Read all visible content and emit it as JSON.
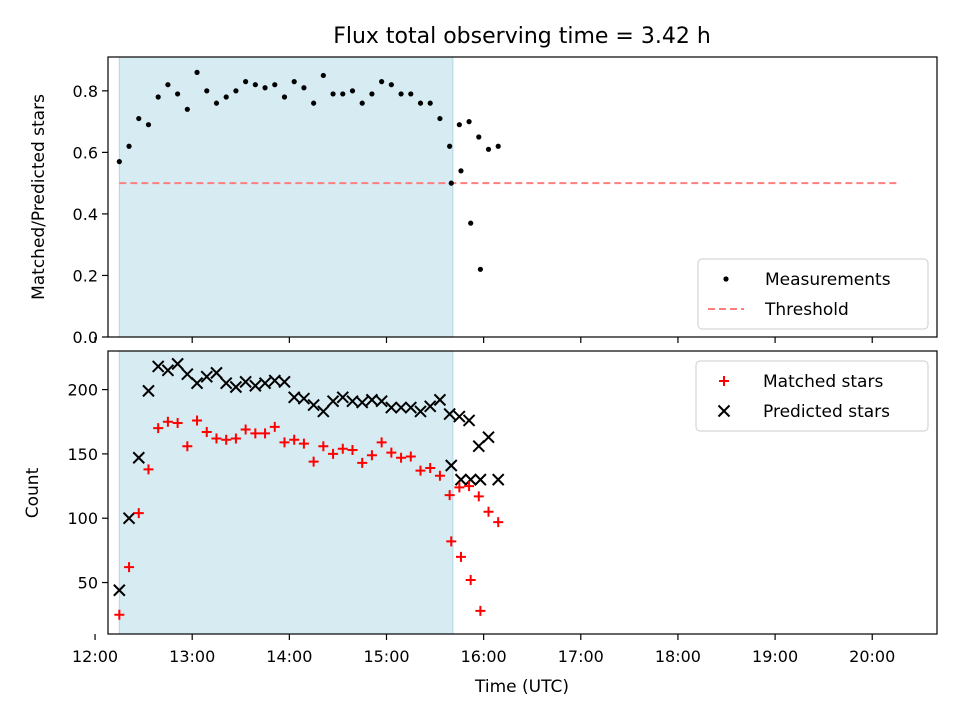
{
  "title": "Flux total observing time = 3.42 h",
  "colors": {
    "shade": "#add8e6",
    "measurement": "#000000",
    "threshold": "#ff7f7f",
    "matched": "#ff0000",
    "predicted": "#000000"
  },
  "chart_data": [
    {
      "type": "scatter",
      "ylabel": "Matched/Predicted stars",
      "ylim": [
        0,
        0.91
      ],
      "yticks": [
        0.0,
        0.2,
        0.4,
        0.6,
        0.8
      ],
      "ytick_labels": [
        "0.0",
        "0.2",
        "0.4",
        "0.6",
        "0.8"
      ],
      "xlim": [
        "12:08",
        "20:40"
      ],
      "shaded_span": [
        "12:15",
        "15:41"
      ],
      "threshold": 0.5,
      "threshold_span": [
        "12:15",
        "20:15"
      ],
      "legend_position": "lower right",
      "series": [
        {
          "name": "Measurements",
          "points": [
            [
              "12:15",
              0.57
            ],
            [
              "12:21",
              0.62
            ],
            [
              "12:27",
              0.71
            ],
            [
              "12:33",
              0.69
            ],
            [
              "12:39",
              0.78
            ],
            [
              "12:45",
              0.82
            ],
            [
              "12:51",
              0.79
            ],
            [
              "12:57",
              0.74
            ],
            [
              "13:03",
              0.86
            ],
            [
              "13:09",
              0.8
            ],
            [
              "13:15",
              0.76
            ],
            [
              "13:21",
              0.78
            ],
            [
              "13:27",
              0.8
            ],
            [
              "13:33",
              0.83
            ],
            [
              "13:39",
              0.82
            ],
            [
              "13:45",
              0.81
            ],
            [
              "13:51",
              0.82
            ],
            [
              "13:57",
              0.78
            ],
            [
              "14:03",
              0.83
            ],
            [
              "14:09",
              0.81
            ],
            [
              "14:15",
              0.76
            ],
            [
              "14:21",
              0.85
            ],
            [
              "14:27",
              0.79
            ],
            [
              "14:33",
              0.79
            ],
            [
              "14:39",
              0.8
            ],
            [
              "14:45",
              0.76
            ],
            [
              "14:51",
              0.79
            ],
            [
              "14:57",
              0.83
            ],
            [
              "15:03",
              0.82
            ],
            [
              "15:09",
              0.79
            ],
            [
              "15:15",
              0.79
            ],
            [
              "15:21",
              0.76
            ],
            [
              "15:27",
              0.76
            ],
            [
              "15:33",
              0.71
            ],
            [
              "15:39",
              0.62
            ],
            [
              "15:45",
              0.69
            ],
            [
              "15:51",
              0.7
            ],
            [
              "15:57",
              0.65
            ],
            [
              "16:03",
              0.61
            ],
            [
              "16:09",
              0.62
            ],
            [
              "15:40",
              0.5
            ],
            [
              "15:46",
              0.54
            ],
            [
              "15:52",
              0.37
            ],
            [
              "15:58",
              0.22
            ]
          ]
        },
        {
          "name": "Threshold"
        }
      ]
    },
    {
      "type": "scatter",
      "xlabel": "Time (UTC)",
      "ylabel": "Count",
      "ylim": [
        10,
        230
      ],
      "yticks": [
        50,
        100,
        150,
        200
      ],
      "ytick_labels": [
        "50",
        "100",
        "150",
        "200"
      ],
      "xlim": [
        "12:08",
        "20:40"
      ],
      "xticks": [
        "12:00",
        "13:00",
        "14:00",
        "15:00",
        "16:00",
        "17:00",
        "18:00",
        "19:00",
        "20:00"
      ],
      "shaded_span": [
        "12:15",
        "15:41"
      ],
      "legend_position": "upper right",
      "series": [
        {
          "name": "Matched stars",
          "points": [
            [
              "12:15",
              25
            ],
            [
              "12:21",
              62
            ],
            [
              "12:27",
              104
            ],
            [
              "12:33",
              138
            ],
            [
              "12:39",
              170
            ],
            [
              "12:45",
              175
            ],
            [
              "12:51",
              174
            ],
            [
              "12:57",
              156
            ],
            [
              "13:03",
              176
            ],
            [
              "13:09",
              167
            ],
            [
              "13:15",
              162
            ],
            [
              "13:21",
              161
            ],
            [
              "13:27",
              162
            ],
            [
              "13:33",
              169
            ],
            [
              "13:39",
              166
            ],
            [
              "13:45",
              166
            ],
            [
              "13:51",
              171
            ],
            [
              "13:57",
              159
            ],
            [
              "14:03",
              161
            ],
            [
              "14:09",
              158
            ],
            [
              "14:15",
              144
            ],
            [
              "14:21",
              156
            ],
            [
              "14:27",
              150
            ],
            [
              "14:33",
              154
            ],
            [
              "14:39",
              153
            ],
            [
              "14:45",
              143
            ],
            [
              "14:51",
              149
            ],
            [
              "14:57",
              159
            ],
            [
              "15:03",
              151
            ],
            [
              "15:09",
              147
            ],
            [
              "15:15",
              148
            ],
            [
              "15:21",
              137
            ],
            [
              "15:27",
              139
            ],
            [
              "15:33",
              133
            ],
            [
              "15:39",
              118
            ],
            [
              "15:45",
              124
            ],
            [
              "15:51",
              125
            ],
            [
              "15:57",
              117
            ],
            [
              "16:03",
              105
            ],
            [
              "16:09",
              97
            ],
            [
              "15:40",
              82
            ],
            [
              "15:46",
              70
            ],
            [
              "15:52",
              52
            ],
            [
              "15:58",
              28
            ]
          ]
        },
        {
          "name": "Predicted stars",
          "points": [
            [
              "12:15",
              44
            ],
            [
              "12:21",
              100
            ],
            [
              "12:27",
              147
            ],
            [
              "12:33",
              199
            ],
            [
              "12:39",
              218
            ],
            [
              "12:45",
              215
            ],
            [
              "12:51",
              220
            ],
            [
              "12:57",
              212
            ],
            [
              "13:03",
              205
            ],
            [
              "13:09",
              210
            ],
            [
              "13:15",
              213
            ],
            [
              "13:21",
              205
            ],
            [
              "13:27",
              202
            ],
            [
              "13:33",
              206
            ],
            [
              "13:39",
              203
            ],
            [
              "13:45",
              205
            ],
            [
              "13:51",
              207
            ],
            [
              "13:57",
              206
            ],
            [
              "14:03",
              194
            ],
            [
              "14:09",
              193
            ],
            [
              "14:15",
              188
            ],
            [
              "14:21",
              183
            ],
            [
              "14:27",
              191
            ],
            [
              "14:33",
              194
            ],
            [
              "14:39",
              191
            ],
            [
              "14:45",
              190
            ],
            [
              "14:51",
              192
            ],
            [
              "14:57",
              191
            ],
            [
              "15:03",
              186
            ],
            [
              "15:09",
              186
            ],
            [
              "15:15",
              186
            ],
            [
              "15:21",
              183
            ],
            [
              "15:27",
              187
            ],
            [
              "15:33",
              192
            ],
            [
              "15:39",
              181
            ],
            [
              "15:45",
              179
            ],
            [
              "15:51",
              176
            ],
            [
              "15:57",
              156
            ],
            [
              "16:03",
              163
            ],
            [
              "16:09",
              130
            ],
            [
              "15:40",
              141
            ],
            [
              "15:46",
              130
            ],
            [
              "15:52",
              130
            ],
            [
              "15:58",
              130
            ]
          ]
        }
      ]
    }
  ]
}
